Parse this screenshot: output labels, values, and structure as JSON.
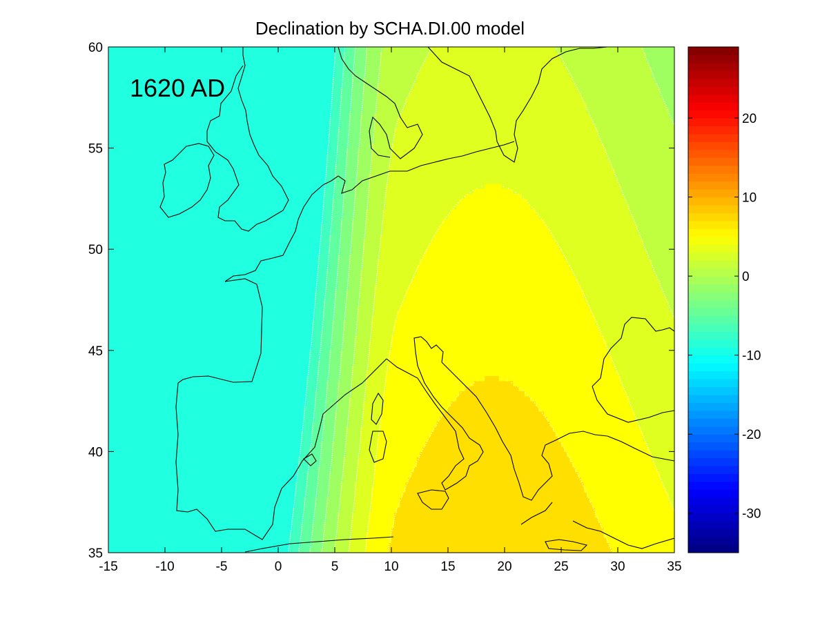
{
  "chart_data": {
    "type": "heatmap",
    "title": "Declination by SCHA.DI.00 model",
    "annotation": "1620 AD",
    "xlabel": "",
    "ylabel": "",
    "xlim": [
      -15,
      35
    ],
    "ylim": [
      35,
      60
    ],
    "x_ticks": [
      -15,
      -10,
      -5,
      0,
      5,
      10,
      15,
      20,
      25,
      30,
      35
    ],
    "y_ticks": [
      35,
      40,
      45,
      50,
      55,
      60
    ],
    "colorbar": {
      "range": [
        -35,
        29
      ],
      "ticks": [
        -30,
        -20,
        -10,
        0,
        10,
        20
      ],
      "colormap": "jet"
    },
    "contour_levels": [
      -8,
      -6,
      -4,
      -2,
      0,
      2,
      4,
      6,
      8
    ],
    "contour_line_color": "#ffffff",
    "coastline_color": "#000000",
    "band_colors": [
      {
        "range": "< -8",
        "color": "#57f28d"
      },
      {
        "range": "-8 to -6",
        "color": "#6ef773"
      },
      {
        "range": "-6 to -4",
        "color": "#8cfb5a"
      },
      {
        "range": "-4 to -2",
        "color": "#aaff42"
      },
      {
        "range": "-2 to 0",
        "color": "#c8ff2c"
      },
      {
        "range": "0 to 2",
        "color": "#e6ff14"
      },
      {
        "range": "2 to 4",
        "color": "#ffff00"
      },
      {
        "range": "4 to 6",
        "color": "#ffdf00"
      },
      {
        "range": "6 to 8",
        "color": "#ffc300"
      }
    ]
  }
}
